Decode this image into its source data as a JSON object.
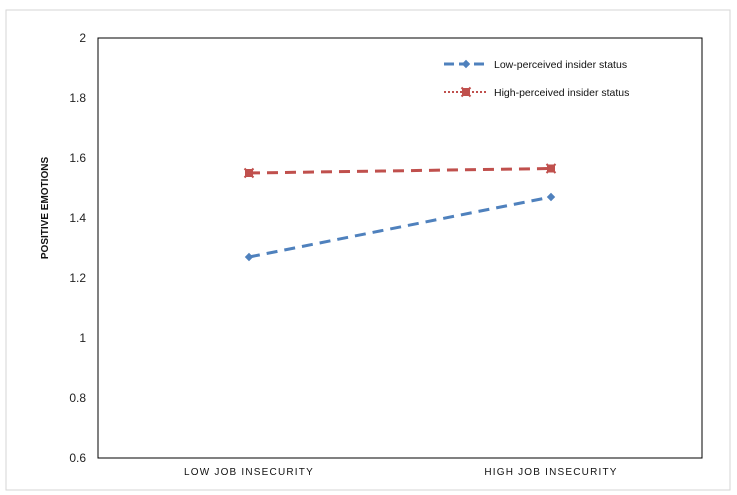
{
  "chart_data": {
    "type": "line",
    "title": "",
    "xlabel": "",
    "ylabel": "POSITIVE EMOTIONS",
    "categories": [
      "LOW JOB INSECURITY",
      "HIGH JOB INSECURITY"
    ],
    "ylim": [
      0.6,
      2
    ],
    "yticks": [
      "0.6",
      "0.8",
      "1",
      "1.2",
      "1.4",
      "1.6",
      "1.8",
      "2"
    ],
    "grid": false,
    "legend_position": "top-right",
    "series": [
      {
        "name": "Low-perceived insider status",
        "values": [
          1.27,
          1.47
        ],
        "color": "#4F81BD",
        "marker": "diamond"
      },
      {
        "name": "High-perceived insider status",
        "values": [
          1.55,
          1.565
        ],
        "color": "#C0504D",
        "marker": "x-square"
      }
    ]
  }
}
